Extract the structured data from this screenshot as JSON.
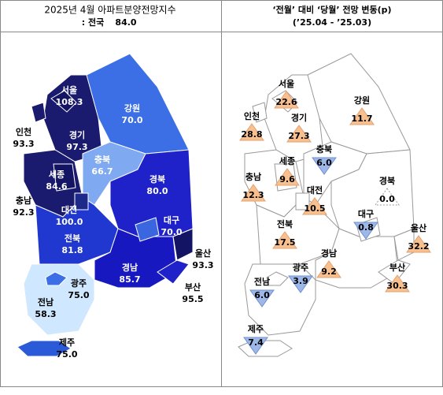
{
  "left": {
    "title": "2025년 4월 아파트분양전망지수",
    "national_prefix": ": 전국",
    "national_value": "84.0",
    "regions": [
      {
        "name": "서울",
        "value": "108.3"
      },
      {
        "name": "경기",
        "value": "97.3"
      },
      {
        "name": "인천",
        "value": "93.3"
      },
      {
        "name": "강원",
        "value": "70.0"
      },
      {
        "name": "세종",
        "value": "84.6"
      },
      {
        "name": "충북",
        "value": "66.7"
      },
      {
        "name": "충남",
        "value": "92.3"
      },
      {
        "name": "대전",
        "value": "100.0"
      },
      {
        "name": "경북",
        "value": "80.0"
      },
      {
        "name": "대구",
        "value": "70.0"
      },
      {
        "name": "전북",
        "value": "81.8"
      },
      {
        "name": "울산",
        "value": "93.3"
      },
      {
        "name": "경남",
        "value": "85.7"
      },
      {
        "name": "광주",
        "value": "75.0"
      },
      {
        "name": "부산",
        "value": "95.5"
      },
      {
        "name": "전남",
        "value": "58.3"
      },
      {
        "name": "제주",
        "value": "75.0"
      }
    ]
  },
  "right": {
    "title": "‘전월’ 대비 ‘당월’ 전망 변동(p)",
    "subtitle": "(’25.04 - ’25.03)",
    "regions": [
      {
        "name": "서울",
        "value": "22.6",
        "direction": "up"
      },
      {
        "name": "인천",
        "value": "28.8",
        "direction": "up"
      },
      {
        "name": "경기",
        "value": "27.3",
        "direction": "up"
      },
      {
        "name": "강원",
        "value": "11.7",
        "direction": "up"
      },
      {
        "name": "충북",
        "value": "6.0",
        "direction": "down"
      },
      {
        "name": "세종",
        "value": "9.6",
        "direction": "up"
      },
      {
        "name": "충남",
        "value": "12.3",
        "direction": "up"
      },
      {
        "name": "대전",
        "value": "10.5",
        "direction": "up"
      },
      {
        "name": "경북",
        "value": "0.0",
        "direction": "flat"
      },
      {
        "name": "대구",
        "value": "0.8",
        "direction": "down"
      },
      {
        "name": "전북",
        "value": "17.5",
        "direction": "up"
      },
      {
        "name": "울산",
        "value": "32.2",
        "direction": "up"
      },
      {
        "name": "경남",
        "value": "9.2",
        "direction": "up"
      },
      {
        "name": "부산",
        "value": "30.3",
        "direction": "up"
      },
      {
        "name": "광주",
        "value": "3.9",
        "direction": "down"
      },
      {
        "name": "전남",
        "value": "6.0",
        "direction": "down"
      },
      {
        "name": "제주",
        "value": "7.4",
        "direction": "down"
      }
    ]
  }
}
